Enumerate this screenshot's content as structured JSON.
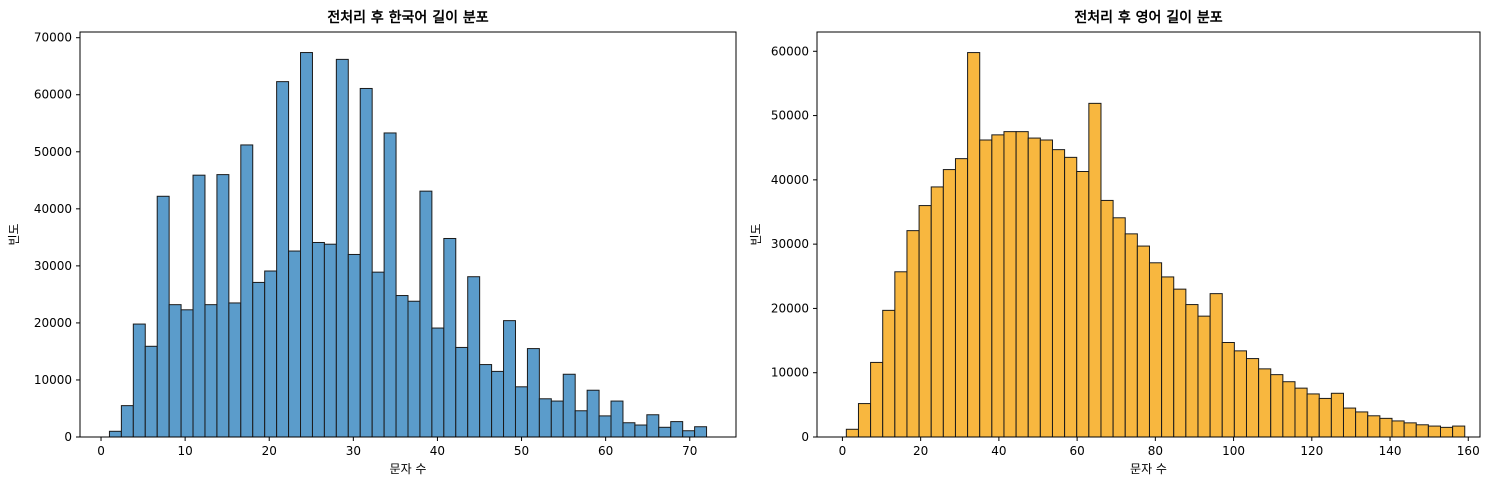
{
  "chart_data": [
    {
      "type": "bar",
      "title": "전처리 후 한국어 길이 분포",
      "xlabel": "문자 수",
      "ylabel": "빈도",
      "xlim": [
        -2.5,
        75.5
      ],
      "ylim": [
        0,
        71000
      ],
      "xticks": [
        0,
        10,
        20,
        30,
        40,
        50,
        60,
        70
      ],
      "yticks": [
        0,
        10000,
        20000,
        30000,
        40000,
        50000,
        60000,
        70000
      ],
      "bin_start": 1,
      "bin_width": 1.42,
      "color": "#5b9ccb",
      "edgecolor": "#1a1a1a",
      "grid": false,
      "values": [
        1000,
        5500,
        19800,
        15900,
        42200,
        23200,
        22300,
        45900,
        23200,
        46000,
        23500,
        51200,
        27100,
        29100,
        62300,
        32600,
        67400,
        34100,
        33800,
        66200,
        32000,
        61100,
        28900,
        53300,
        24800,
        23800,
        43100,
        19100,
        34800,
        15700,
        28100,
        12700,
        11500,
        20400,
        8800,
        15500,
        6700,
        6300,
        11000,
        4600,
        8200,
        3700,
        6300,
        2500,
        2100,
        3900,
        1700,
        2700,
        1100,
        1800
      ]
    },
    {
      "type": "bar",
      "title": "전처리 후 영어 길이 분포",
      "xlabel": "문자 수",
      "ylabel": "빈도",
      "xlim": [
        -6.5,
        163
      ],
      "ylim": [
        0,
        63000
      ],
      "xticks": [
        0,
        20,
        40,
        60,
        80,
        100,
        120,
        140,
        160
      ],
      "yticks": [
        0,
        10000,
        20000,
        30000,
        40000,
        50000,
        60000
      ],
      "bin_start": 1,
      "bin_width": 3.1,
      "color": "#f8b73f",
      "edgecolor": "#1a1a1a",
      "grid": false,
      "values": [
        1200,
        5200,
        11600,
        19700,
        25700,
        32100,
        36000,
        38900,
        41600,
        43300,
        59800,
        46200,
        47000,
        47500,
        47500,
        46500,
        46200,
        44700,
        43500,
        41300,
        51900,
        36800,
        34100,
        31600,
        29700,
        27100,
        24900,
        23000,
        20600,
        18800,
        22300,
        14700,
        13400,
        12200,
        10600,
        9700,
        8600,
        7600,
        6700,
        6000,
        6800,
        4500,
        3900,
        3300,
        2900,
        2500,
        2200,
        1900,
        1700,
        1500,
        1700
      ]
    }
  ]
}
